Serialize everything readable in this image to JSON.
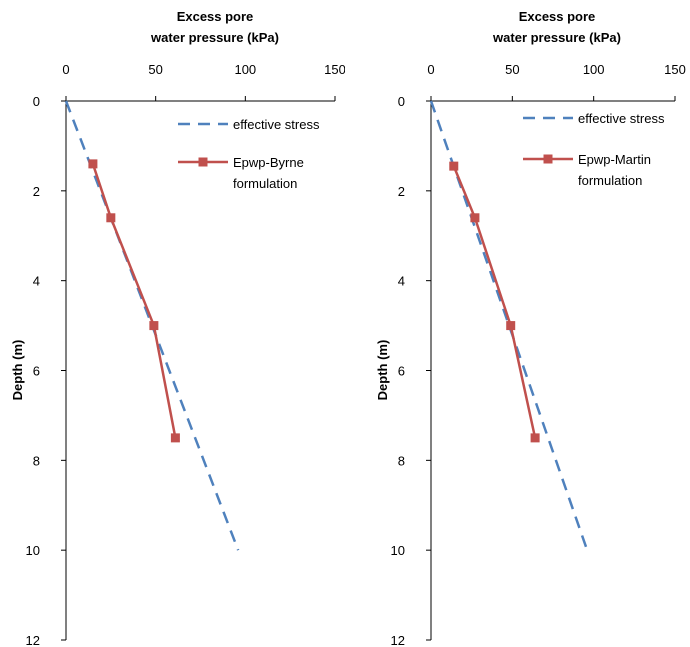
{
  "chart_data": [
    {
      "type": "line",
      "x_axis_position": "top",
      "y_axis_inverted": true,
      "xlabel": [
        "Excess pore",
        "water pressure (kPa)"
      ],
      "ylabel": "Depth (m)",
      "xlim": [
        0,
        150
      ],
      "ylim": [
        0,
        12
      ],
      "x_ticks": [
        "0",
        "50",
        "100",
        "150"
      ],
      "y_ticks": [
        "0",
        "2",
        "4",
        "6",
        "8",
        "10",
        "12"
      ],
      "grid": false,
      "legend_position": "top-right",
      "series": [
        {
          "name": "effective stress",
          "style": "dashed",
          "color": "#4F81BD",
          "x": [
            0,
            96
          ],
          "y": [
            0,
            10
          ]
        },
        {
          "name": [
            "Epwp-Byrne",
            "formulation"
          ],
          "style": "solid-square-markers",
          "color": "#C0504D",
          "x": [
            15,
            25,
            49,
            61
          ],
          "y": [
            1.4,
            2.6,
            5.0,
            7.5
          ]
        }
      ]
    },
    {
      "type": "line",
      "x_axis_position": "top",
      "y_axis_inverted": true,
      "xlabel": [
        "Excess pore",
        "water pressure (kPa)"
      ],
      "ylabel": "Depth (m)",
      "xlim": [
        0,
        150
      ],
      "ylim": [
        0,
        12
      ],
      "x_ticks": [
        "0",
        "50",
        "100",
        "150"
      ],
      "y_ticks": [
        "0",
        "2",
        "4",
        "6",
        "8",
        "10",
        "12"
      ],
      "grid": false,
      "legend_position": "top-right",
      "series": [
        {
          "name": "effective stress",
          "style": "dashed",
          "color": "#4F81BD",
          "x": [
            0,
            96
          ],
          "y": [
            0,
            10
          ]
        },
        {
          "name": [
            "Epwp-Martin",
            "formulation"
          ],
          "style": "solid-square-markers",
          "color": "#C0504D",
          "x": [
            14,
            27,
            49,
            64
          ],
          "y": [
            1.45,
            2.6,
            5.0,
            7.5
          ]
        }
      ]
    }
  ]
}
